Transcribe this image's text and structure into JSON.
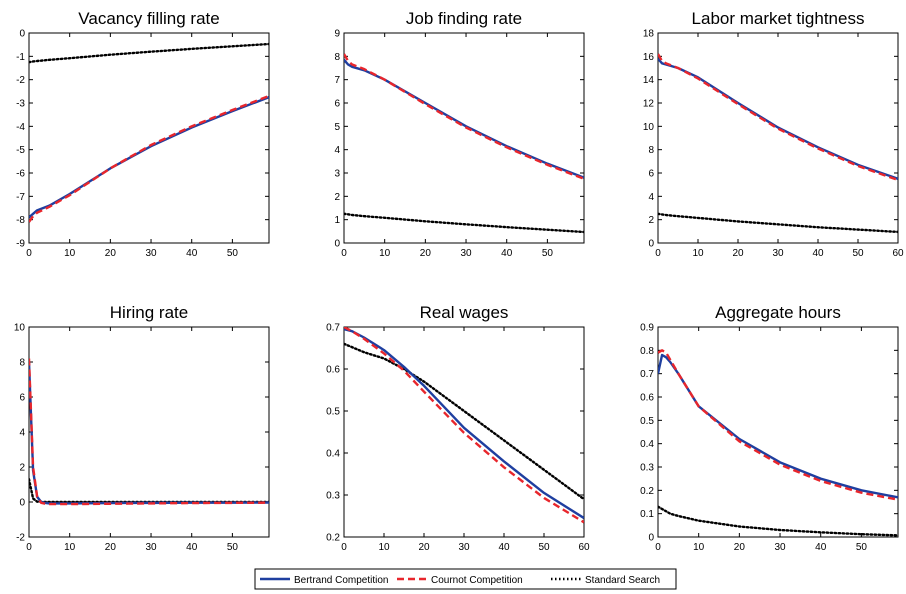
{
  "colors": {
    "bertrand": "#1f3fa0",
    "cournot": "#e8262c",
    "standard": "#000000"
  },
  "legend": {
    "bertrand": "Bertrand Competition",
    "cournot": "Cournot Competition",
    "standard": "Standard Search"
  },
  "chart_data": [
    {
      "type": "line",
      "title": "Vacancy filling rate",
      "xlim": [
        0,
        59
      ],
      "ylim": [
        -9,
        0
      ],
      "xticks": [
        0,
        10,
        20,
        30,
        40,
        50
      ],
      "yticks": [
        -9,
        -8,
        -7,
        -6,
        -5,
        -4,
        -3,
        -2,
        -1,
        0
      ],
      "x": [
        0,
        1,
        2,
        5,
        10,
        20,
        30,
        40,
        50,
        59
      ],
      "series": [
        {
          "name": "Bertrand Competition",
          "key": "bertrand",
          "values": [
            -7.9,
            -7.75,
            -7.6,
            -7.4,
            -6.9,
            -5.8,
            -4.85,
            -4.05,
            -3.35,
            -2.75
          ]
        },
        {
          "name": "Cournot Competition",
          "key": "cournot",
          "values": [
            -8.1,
            -7.85,
            -7.7,
            -7.45,
            -6.95,
            -5.8,
            -4.8,
            -4.0,
            -3.3,
            -2.7
          ]
        },
        {
          "name": "Standard Search",
          "key": "standard",
          "values": [
            -1.25,
            -1.22,
            -1.2,
            -1.15,
            -1.08,
            -0.93,
            -0.8,
            -0.68,
            -0.57,
            -0.47
          ]
        }
      ]
    },
    {
      "type": "line",
      "title": "Job finding rate",
      "xlim": [
        0,
        59
      ],
      "ylim": [
        0,
        9
      ],
      "xticks": [
        0,
        10,
        20,
        30,
        40,
        50
      ],
      "yticks": [
        0,
        1,
        2,
        3,
        4,
        5,
        6,
        7,
        8,
        9
      ],
      "x": [
        0,
        1,
        2,
        5,
        10,
        20,
        30,
        40,
        50,
        59
      ],
      "series": [
        {
          "name": "Bertrand Competition",
          "key": "bertrand",
          "values": [
            7.85,
            7.65,
            7.55,
            7.4,
            7.0,
            6.0,
            5.0,
            4.15,
            3.4,
            2.8
          ]
        },
        {
          "name": "Cournot Competition",
          "key": "cournot",
          "values": [
            8.1,
            7.8,
            7.65,
            7.45,
            7.0,
            5.95,
            4.95,
            4.1,
            3.35,
            2.75
          ]
        },
        {
          "name": "Standard Search",
          "key": "standard",
          "values": [
            1.25,
            1.23,
            1.2,
            1.15,
            1.08,
            0.93,
            0.8,
            0.68,
            0.57,
            0.47
          ]
        }
      ]
    },
    {
      "type": "line",
      "title": "Labor market tightness",
      "xlim": [
        0,
        60
      ],
      "ylim": [
        0,
        18
      ],
      "xticks": [
        0,
        10,
        20,
        30,
        40,
        50,
        60
      ],
      "yticks": [
        0,
        2,
        4,
        6,
        8,
        10,
        12,
        14,
        16,
        18
      ],
      "x": [
        0,
        1,
        2,
        5,
        10,
        20,
        30,
        40,
        50,
        60
      ],
      "series": [
        {
          "name": "Bertrand Competition",
          "key": "bertrand",
          "values": [
            15.8,
            15.4,
            15.3,
            15.0,
            14.2,
            12.0,
            9.9,
            8.2,
            6.7,
            5.5
          ]
        },
        {
          "name": "Cournot Competition",
          "key": "cournot",
          "values": [
            16.2,
            15.6,
            15.4,
            15.0,
            14.1,
            11.9,
            9.8,
            8.1,
            6.6,
            5.4
          ]
        },
        {
          "name": "Standard Search",
          "key": "standard",
          "values": [
            2.5,
            2.45,
            2.4,
            2.3,
            2.15,
            1.85,
            1.6,
            1.35,
            1.15,
            0.95
          ]
        }
      ]
    },
    {
      "type": "line",
      "title": "Hiring rate",
      "xlim": [
        0,
        59
      ],
      "ylim": [
        -2,
        10
      ],
      "xticks": [
        0,
        10,
        20,
        30,
        40,
        50
      ],
      "yticks": [
        -2,
        0,
        2,
        4,
        6,
        8,
        10
      ],
      "x": [
        0,
        1,
        2,
        3,
        4,
        5,
        10,
        20,
        30,
        40,
        50,
        59
      ],
      "series": [
        {
          "name": "Bertrand Competition",
          "key": "bertrand",
          "values": [
            8.0,
            1.8,
            0.3,
            0.0,
            -0.05,
            -0.08,
            -0.08,
            -0.06,
            -0.05,
            -0.04,
            -0.04,
            -0.03
          ]
        },
        {
          "name": "Cournot Competition",
          "key": "cournot",
          "values": [
            8.2,
            2.0,
            0.3,
            -0.05,
            -0.1,
            -0.12,
            -0.12,
            -0.1,
            -0.08,
            -0.06,
            -0.05,
            -0.04
          ]
        },
        {
          "name": "Standard Search",
          "key": "standard",
          "values": [
            1.3,
            0.2,
            0.02,
            0.0,
            0.0,
            0.0,
            0.0,
            0.0,
            0.0,
            0.0,
            0.0,
            0.0
          ]
        }
      ]
    },
    {
      "type": "line",
      "title": "Real wages",
      "xlim": [
        0,
        60
      ],
      "ylim": [
        0.2,
        0.7
      ],
      "xticks": [
        0,
        10,
        20,
        30,
        40,
        50,
        60
      ],
      "yticks": [
        0.2,
        0.3,
        0.4,
        0.5,
        0.6,
        0.7
      ],
      "x": [
        0,
        2,
        5,
        10,
        15,
        20,
        30,
        40,
        50,
        60
      ],
      "series": [
        {
          "name": "Bertrand Competition",
          "key": "bertrand",
          "values": [
            0.695,
            0.69,
            0.675,
            0.645,
            0.605,
            0.56,
            0.46,
            0.38,
            0.305,
            0.245
          ]
        },
        {
          "name": "Cournot Competition",
          "key": "cournot",
          "values": [
            0.7,
            0.69,
            0.672,
            0.637,
            0.596,
            0.546,
            0.448,
            0.366,
            0.293,
            0.235
          ]
        },
        {
          "name": "Standard Search",
          "key": "standard",
          "values": [
            0.66,
            0.652,
            0.64,
            0.625,
            0.6,
            0.57,
            0.5,
            0.43,
            0.36,
            0.29
          ]
        }
      ]
    },
    {
      "type": "line",
      "title": "Aggregate hours",
      "xlim": [
        0,
        59
      ],
      "ylim": [
        0,
        0.9
      ],
      "xticks": [
        0,
        10,
        20,
        30,
        40,
        50
      ],
      "yticks": [
        0,
        0.1,
        0.2,
        0.3,
        0.4,
        0.5,
        0.6,
        0.7,
        0.8,
        0.9
      ],
      "x": [
        0,
        1,
        2,
        3,
        5,
        10,
        20,
        30,
        40,
        50,
        59
      ],
      "series": [
        {
          "name": "Bertrand Competition",
          "key": "bertrand",
          "values": [
            0.7,
            0.78,
            0.77,
            0.75,
            0.7,
            0.56,
            0.42,
            0.32,
            0.25,
            0.2,
            0.17
          ]
        },
        {
          "name": "Cournot Competition",
          "key": "cournot",
          "values": [
            0.79,
            0.8,
            0.79,
            0.76,
            0.7,
            0.56,
            0.41,
            0.31,
            0.24,
            0.19,
            0.16
          ]
        },
        {
          "name": "Standard Search",
          "key": "standard",
          "values": [
            0.13,
            0.12,
            0.11,
            0.1,
            0.09,
            0.07,
            0.045,
            0.03,
            0.02,
            0.012,
            0.007
          ]
        }
      ]
    }
  ]
}
